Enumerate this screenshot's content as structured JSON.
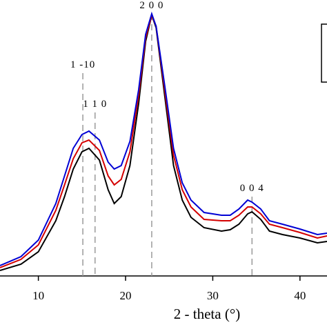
{
  "chart_data": {
    "type": "line",
    "x_label": "2 - theta (°)",
    "x": [
      5.6,
      8,
      10,
      12,
      13,
      14,
      15,
      15.8,
      17,
      18,
      18.7,
      19.5,
      20.5,
      21.5,
      22.3,
      23,
      23.5,
      24.5,
      25.5,
      26.5,
      27.5,
      29,
      31,
      32,
      33,
      34,
      34.5,
      35.5,
      36.5,
      38,
      40,
      42,
      43.1
    ],
    "series": [
      {
        "color": "#000000",
        "values": [
          8,
          17,
          35,
          80,
          115,
          155,
          180,
          185,
          168,
          125,
          105,
          115,
          160,
          250,
          340,
          378,
          360,
          260,
          160,
          110,
          85,
          70,
          65,
          67,
          75,
          90,
          93,
          82,
          65,
          60,
          55,
          48,
          50
        ]
      },
      {
        "color": "#d40000",
        "values": [
          12,
          24,
          45,
          95,
          132,
          170,
          193,
          197,
          182,
          145,
          132,
          140,
          180,
          262,
          345,
          378,
          362,
          268,
          175,
          125,
          100,
          82,
          80,
          80,
          88,
          100,
          100,
          90,
          75,
          70,
          63,
          55,
          58
        ]
      },
      {
        "color": "#0000d4",
        "values": [
          15,
          28,
          52,
          105,
          145,
          185,
          205,
          210,
          197,
          165,
          155,
          160,
          195,
          270,
          350,
          380,
          362,
          275,
          185,
          135,
          110,
          92,
          88,
          88,
          97,
          110,
          107,
          97,
          80,
          75,
          68,
          60,
          62
        ]
      }
    ],
    "xlim": [
      5.6,
      43.1
    ],
    "ylim": [
      0,
      400
    ],
    "xticks": [
      10,
      20,
      30,
      40
    ],
    "annotations": [
      {
        "x": 15.1,
        "label": "1 -10"
      },
      {
        "x": 16.5,
        "label": "1 1 0"
      },
      {
        "x": 23,
        "label": "2 0 0"
      },
      {
        "x": 34.5,
        "label": "0 0 4"
      }
    ]
  }
}
